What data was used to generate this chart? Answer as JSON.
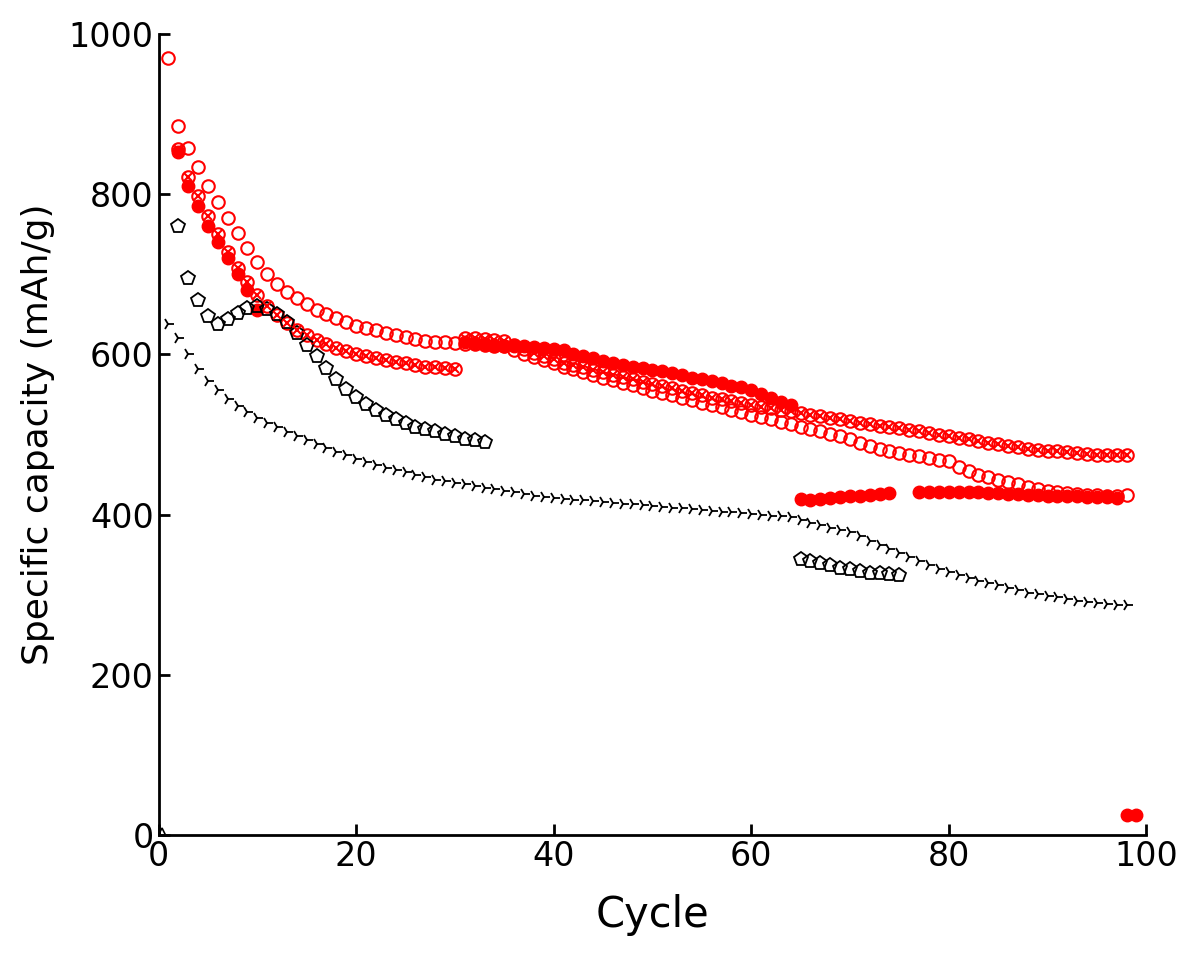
{
  "xlabel": "Cycle",
  "ylabel": "Specific capacity (mAh/g)",
  "xlim": [
    0,
    100
  ],
  "ylim": [
    0,
    1000
  ],
  "xticks": [
    0,
    20,
    40,
    60,
    80,
    100
  ],
  "yticks": [
    0,
    200,
    400,
    600,
    800,
    1000
  ],
  "xlabel_fontsize": 30,
  "ylabel_fontsize": 26,
  "tick_fontsize": 24,
  "background_color": "#ffffff",
  "red_color": "#FF0000",
  "black_color": "#000000",
  "red_open_x": [
    1,
    2,
    3,
    4,
    5,
    6,
    7,
    8,
    9,
    10,
    11,
    12,
    13,
    14,
    15,
    16,
    17,
    18,
    19,
    20,
    21,
    22,
    23,
    24,
    25,
    26,
    27,
    28,
    29,
    30,
    31,
    32,
    33,
    34,
    35,
    36,
    37,
    38,
    39,
    40,
    41,
    42,
    43,
    44,
    45,
    46,
    47,
    48,
    49,
    50,
    51,
    52,
    53,
    54,
    55,
    56,
    57,
    58,
    59,
    60,
    61,
    62,
    63,
    64,
    65,
    66,
    67,
    68,
    69,
    70,
    71,
    72,
    73,
    74,
    75,
    76,
    77,
    78,
    79,
    80,
    81,
    82,
    83,
    84,
    85,
    86,
    87,
    88,
    89,
    90,
    91,
    92,
    93,
    94,
    95,
    96,
    97,
    98
  ],
  "red_open_y": [
    970,
    885,
    857,
    834,
    810,
    790,
    770,
    751,
    733,
    715,
    700,
    688,
    678,
    670,
    663,
    656,
    650,
    645,
    640,
    636,
    633,
    630,
    627,
    624,
    622,
    619,
    617,
    616,
    615,
    614,
    613,
    613,
    612,
    611,
    610,
    606,
    601,
    597,
    593,
    589,
    585,
    582,
    578,
    575,
    571,
    568,
    565,
    562,
    558,
    555,
    552,
    549,
    546,
    543,
    540,
    537,
    534,
    531,
    528,
    525,
    522,
    519,
    516,
    513,
    510,
    507,
    504,
    501,
    498,
    495,
    490,
    486,
    482,
    479,
    477,
    475,
    473,
    471,
    469,
    467,
    460,
    455,
    450,
    447,
    444,
    441,
    438,
    435,
    432,
    430,
    428,
    427,
    426,
    425,
    425,
    424,
    424,
    425
  ],
  "red_x_x": [
    2,
    3,
    4,
    5,
    6,
    7,
    8,
    9,
    10,
    11,
    12,
    13,
    14,
    15,
    16,
    17,
    18,
    19,
    20,
    21,
    22,
    23,
    24,
    25,
    26,
    27,
    28,
    29,
    30,
    31,
    32,
    33,
    34,
    35,
    36,
    37,
    38,
    39,
    40,
    41,
    42,
    43,
    44,
    45,
    46,
    47,
    48,
    49,
    50,
    51,
    52,
    53,
    54,
    55,
    56,
    57,
    58,
    59,
    60,
    61,
    62,
    63,
    64,
    65,
    66,
    67,
    68,
    69,
    70,
    71,
    72,
    73,
    74,
    75,
    76,
    77,
    78,
    79,
    80,
    81,
    82,
    83,
    84,
    85,
    86,
    87,
    88,
    89,
    90,
    91,
    92,
    93,
    94,
    95,
    96,
    97,
    98
  ],
  "red_x_y": [
    856,
    822,
    798,
    773,
    750,
    728,
    708,
    690,
    674,
    661,
    649,
    639,
    631,
    624,
    618,
    613,
    608,
    604,
    601,
    598,
    595,
    593,
    591,
    589,
    587,
    585,
    584,
    583,
    582,
    621,
    620,
    619,
    618,
    617,
    612,
    607,
    602,
    598,
    594,
    590,
    587,
    584,
    581,
    578,
    575,
    572,
    569,
    566,
    563,
    561,
    558,
    555,
    552,
    549,
    546,
    544,
    542,
    539,
    537,
    535,
    533,
    531,
    529,
    527,
    525,
    523,
    521,
    519,
    517,
    515,
    513,
    511,
    510,
    508,
    506,
    504,
    502,
    500,
    498,
    496,
    494,
    492,
    490,
    488,
    486,
    484,
    482,
    481,
    480,
    479,
    478,
    477,
    476,
    475,
    475,
    474,
    474
  ],
  "red_filled_x": [
    2,
    3,
    4,
    5,
    6,
    7,
    8,
    9,
    10,
    31,
    32,
    33,
    34,
    35,
    36,
    37,
    38,
    39,
    40,
    41,
    42,
    43,
    44,
    45,
    46,
    47,
    48,
    49,
    50,
    51,
    52,
    53,
    54,
    55,
    56,
    57,
    58,
    59,
    60,
    61,
    62,
    63,
    64,
    65,
    66,
    67,
    68,
    69,
    70,
    71,
    72,
    73,
    74,
    77,
    78,
    79,
    80,
    81,
    82,
    83,
    84,
    85,
    86,
    87,
    88,
    89,
    90,
    91,
    92,
    93,
    94,
    95,
    96,
    97,
    98,
    99
  ],
  "red_filled_y": [
    852,
    810,
    785,
    760,
    740,
    720,
    700,
    680,
    655,
    615,
    614,
    613,
    612,
    611,
    610,
    610,
    609,
    608,
    607,
    606,
    601,
    598,
    595,
    592,
    590,
    587,
    585,
    583,
    581,
    579,
    577,
    574,
    571,
    569,
    567,
    564,
    561,
    559,
    556,
    551,
    546,
    541,
    537,
    420,
    418,
    420,
    421,
    422,
    423,
    424,
    425,
    426,
    427,
    428,
    428,
    428,
    428,
    428,
    428,
    428,
    427,
    427,
    426,
    426,
    425,
    425,
    424,
    424,
    423,
    423,
    422,
    422,
    422,
    421,
    25,
    25
  ],
  "black_pent_x": [
    2,
    3,
    4,
    5,
    6,
    7,
    8,
    9,
    10,
    11,
    12,
    13,
    14,
    15,
    16,
    17,
    18,
    19,
    20,
    21,
    22,
    23,
    24,
    25,
    26,
    27,
    28,
    29,
    30,
    31,
    32,
    33,
    65,
    66,
    67,
    68,
    69,
    70,
    71,
    72,
    73,
    74,
    75
  ],
  "black_pent_y": [
    760,
    695,
    668,
    648,
    638,
    644,
    652,
    658,
    660,
    657,
    650,
    640,
    627,
    612,
    598,
    583,
    569,
    557,
    547,
    538,
    531,
    524,
    519,
    514,
    510,
    507,
    504,
    501,
    498,
    495,
    493,
    491,
    345,
    342,
    340,
    337,
    334,
    332,
    330,
    328,
    327,
    326,
    325
  ],
  "black_arr_x": [
    1,
    2,
    3,
    4,
    5,
    6,
    7,
    8,
    9,
    10,
    11,
    12,
    13,
    14,
    15,
    16,
    17,
    18,
    19,
    20,
    21,
    22,
    23,
    24,
    25,
    26,
    27,
    28,
    29,
    30,
    31,
    32,
    33,
    34,
    35,
    36,
    37,
    38,
    39,
    40,
    41,
    42,
    43,
    44,
    45,
    46,
    47,
    48,
    49,
    50,
    51,
    52,
    53,
    54,
    55,
    56,
    57,
    58,
    59,
    60,
    61,
    62,
    63,
    64,
    65,
    66,
    67,
    68,
    69,
    70,
    71,
    72,
    73,
    74,
    75,
    76,
    77,
    78,
    79,
    80,
    81,
    82,
    83,
    84,
    85,
    86,
    87,
    88,
    89,
    90,
    91,
    92,
    93,
    94,
    95,
    96,
    97,
    98
  ],
  "black_arr_y": [
    638,
    620,
    600,
    582,
    567,
    556,
    545,
    536,
    528,
    521,
    515,
    509,
    503,
    498,
    493,
    488,
    483,
    478,
    474,
    470,
    466,
    462,
    459,
    456,
    453,
    450,
    447,
    444,
    442,
    440,
    438,
    436,
    434,
    432,
    430,
    428,
    426,
    424,
    422,
    421,
    420,
    419,
    418,
    417,
    416,
    415,
    414,
    413,
    412,
    411,
    410,
    409,
    408,
    407,
    406,
    405,
    404,
    403,
    402,
    401,
    400,
    399,
    398,
    397,
    393,
    390,
    387,
    384,
    381,
    378,
    373,
    367,
    362,
    357,
    352,
    347,
    342,
    337,
    333,
    329,
    325,
    321,
    318,
    315,
    312,
    309,
    306,
    303,
    301,
    299,
    297,
    295,
    293,
    291,
    290,
    289,
    288,
    287
  ],
  "black_triangle_x": [
    0.3
  ],
  "black_triangle_y": [
    3
  ]
}
